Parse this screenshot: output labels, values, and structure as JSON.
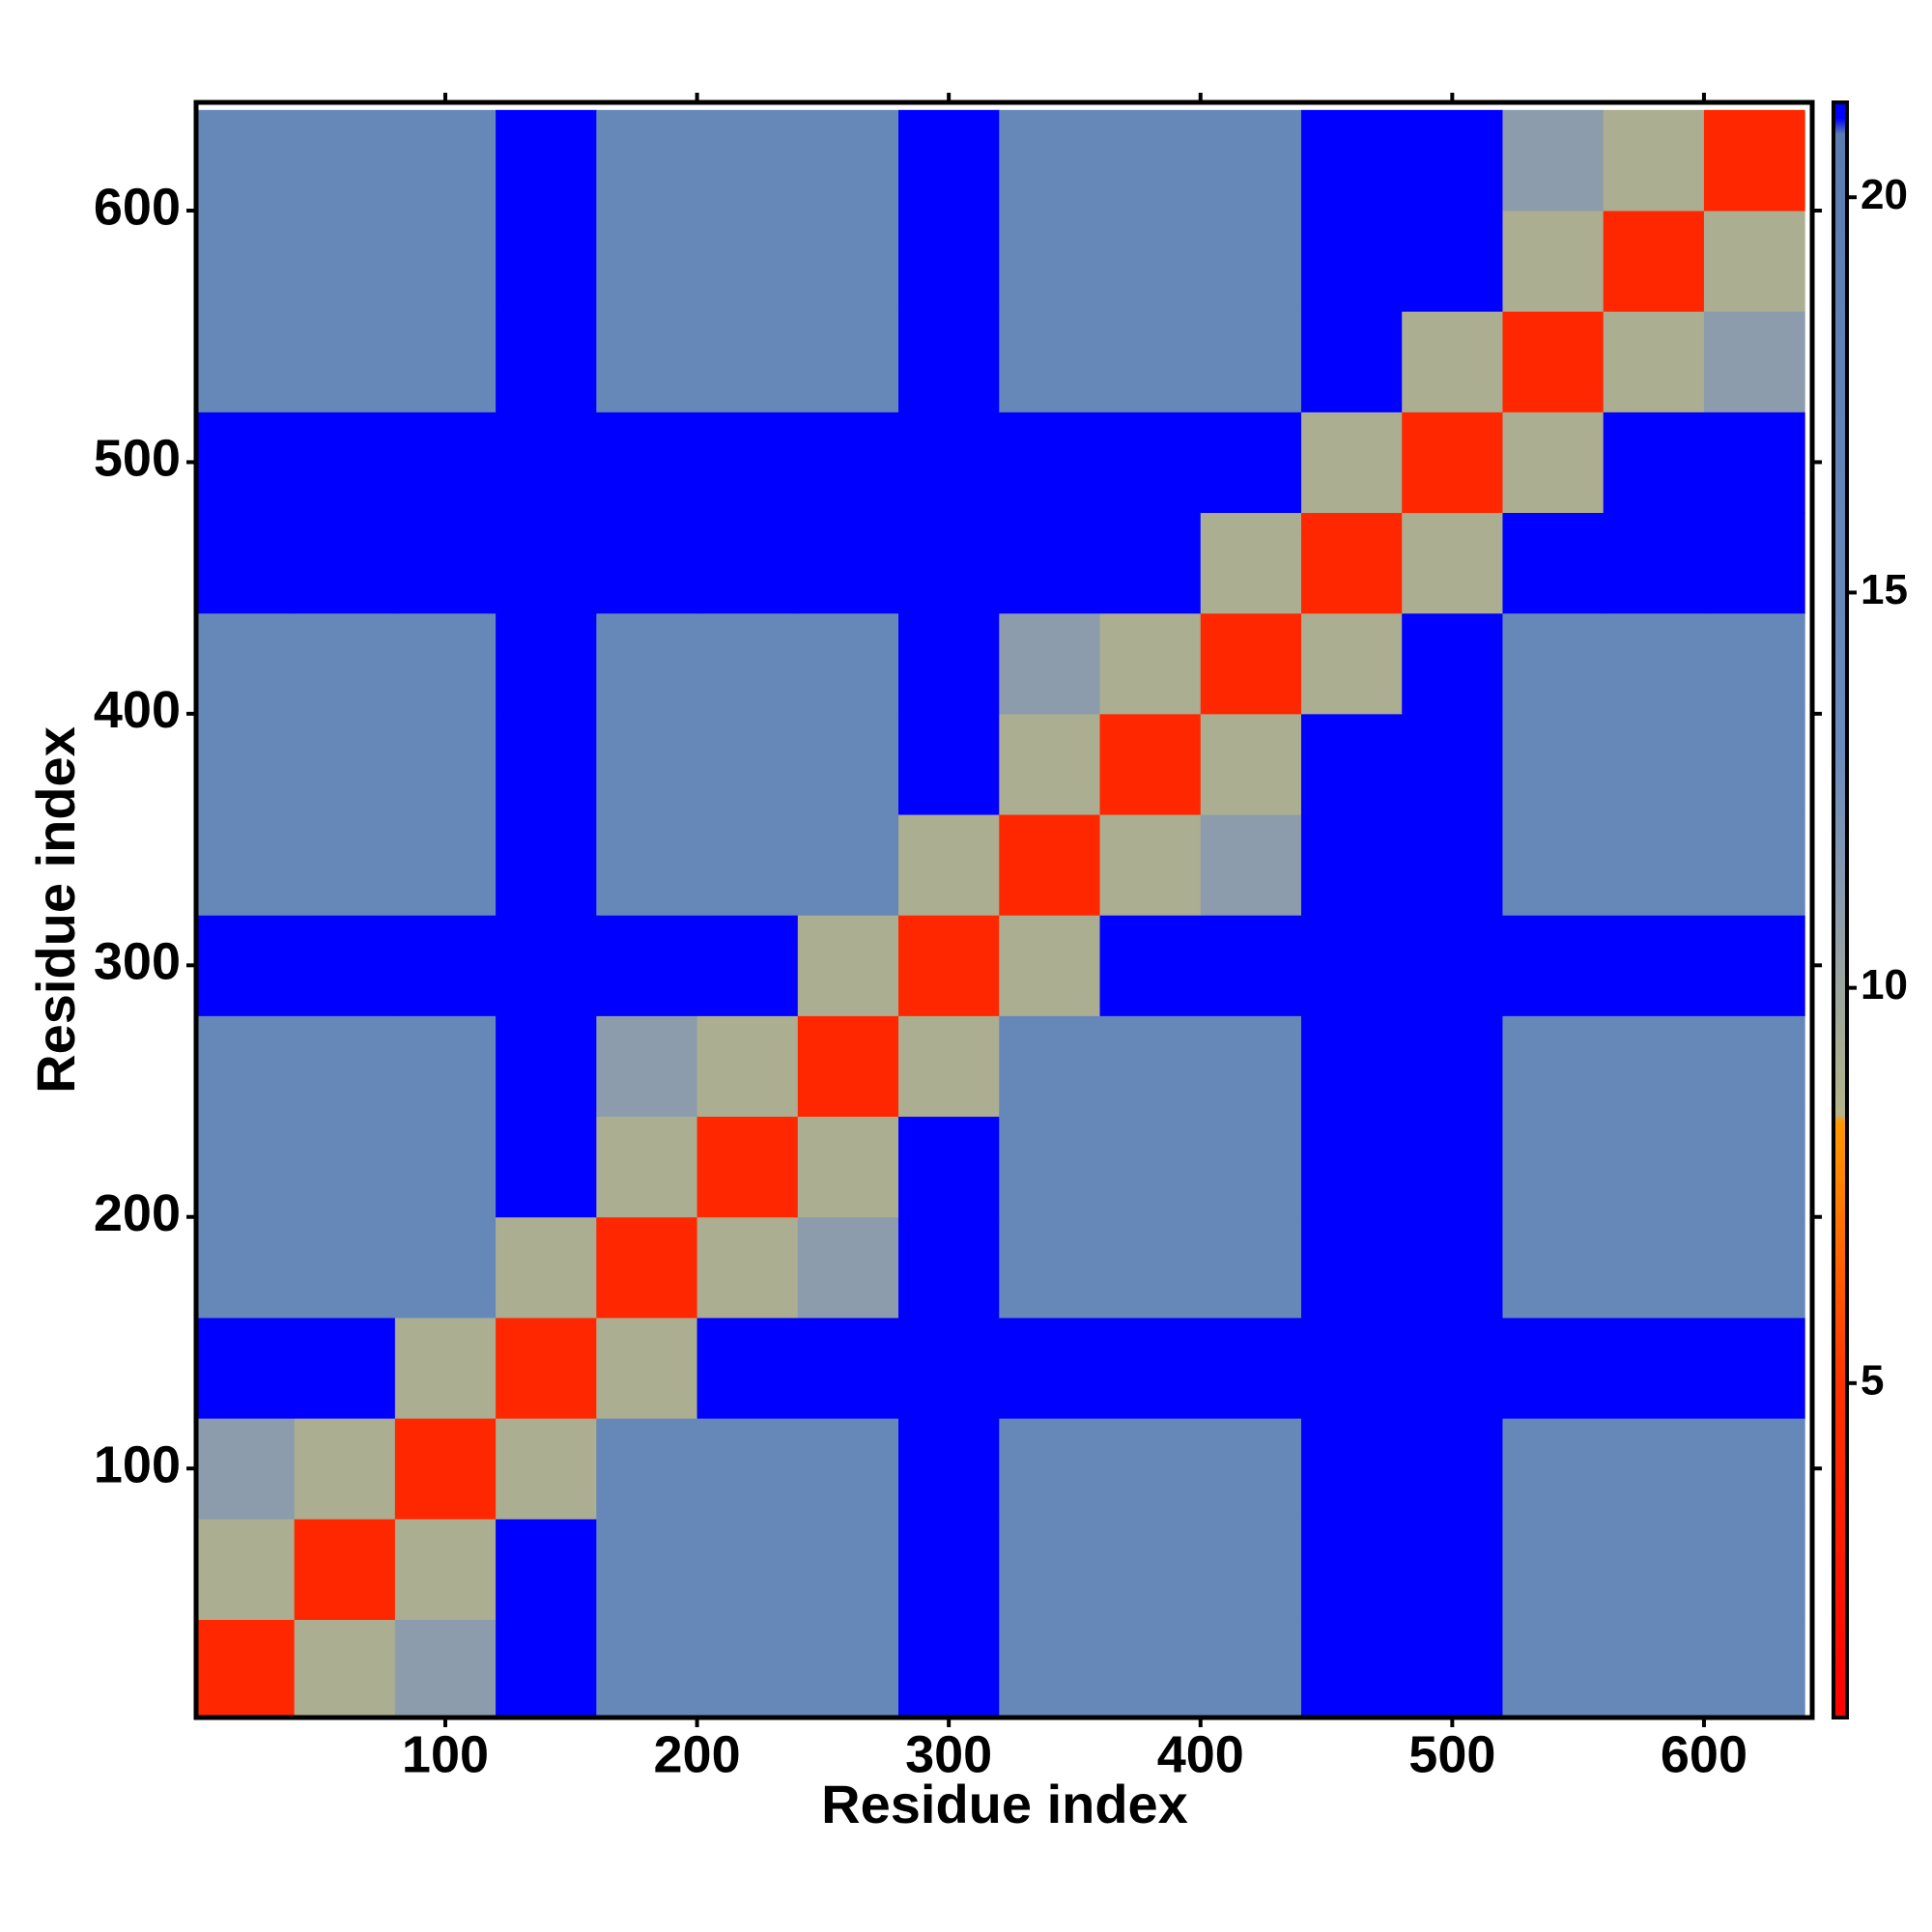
{
  "chart_data": {
    "type": "heatmap",
    "xlabel": "Residue index",
    "ylabel": "Residue index",
    "xbins": [
      0,
      40,
      80,
      120,
      160,
      200,
      240,
      280,
      320,
      360,
      400,
      440,
      480,
      520,
      560,
      600,
      640
    ],
    "ybins": [
      0,
      40,
      80,
      120,
      160,
      200,
      240,
      280,
      320,
      360,
      400,
      440,
      480,
      520,
      560,
      600,
      640
    ],
    "z": [
      [
        4,
        9,
        11,
        21,
        15,
        15,
        15,
        21,
        15,
        15,
        15,
        21,
        21,
        15,
        15,
        15
      ],
      [
        9,
        4,
        9,
        21,
        15,
        15,
        15,
        21,
        15,
        15,
        15,
        21,
        21,
        15,
        15,
        15
      ],
      [
        11,
        9,
        4,
        9,
        15,
        15,
        15,
        21,
        15,
        15,
        15,
        21,
        21,
        15,
        15,
        15
      ],
      [
        21,
        21,
        9,
        4,
        9,
        21,
        21,
        21,
        21,
        21,
        21,
        21,
        21,
        21,
        21,
        21
      ],
      [
        15,
        15,
        15,
        9,
        4,
        9,
        11,
        21,
        15,
        15,
        15,
        21,
        21,
        15,
        15,
        15
      ],
      [
        15,
        15,
        15,
        21,
        9,
        4,
        9,
        21,
        15,
        15,
        15,
        21,
        21,
        15,
        15,
        15
      ],
      [
        15,
        15,
        15,
        21,
        11,
        9,
        4,
        9,
        15,
        15,
        15,
        21,
        21,
        15,
        15,
        15
      ],
      [
        21,
        21,
        21,
        21,
        21,
        21,
        9,
        4,
        9,
        21,
        21,
        21,
        21,
        21,
        21,
        21
      ],
      [
        15,
        15,
        15,
        21,
        15,
        15,
        15,
        9,
        4,
        9,
        11,
        21,
        21,
        15,
        15,
        15
      ],
      [
        15,
        15,
        15,
        21,
        15,
        15,
        15,
        21,
        9,
        4,
        9,
        21,
        21,
        15,
        15,
        15
      ],
      [
        15,
        15,
        15,
        21,
        15,
        15,
        15,
        21,
        11,
        9,
        4,
        9,
        21,
        15,
        15,
        15
      ],
      [
        21,
        21,
        21,
        21,
        21,
        21,
        21,
        21,
        21,
        21,
        9,
        4,
        9,
        21,
        21,
        21
      ],
      [
        21,
        21,
        21,
        21,
        21,
        21,
        21,
        21,
        21,
        21,
        21,
        9,
        4,
        9,
        21,
        21
      ],
      [
        15,
        15,
        15,
        21,
        15,
        15,
        15,
        21,
        15,
        15,
        15,
        21,
        9,
        4,
        9,
        11
      ],
      [
        15,
        15,
        15,
        21,
        15,
        15,
        15,
        21,
        15,
        15,
        15,
        21,
        21,
        9,
        4,
        9
      ],
      [
        15,
        15,
        15,
        21,
        15,
        15,
        15,
        21,
        15,
        15,
        15,
        21,
        21,
        11,
        9,
        4
      ]
    ],
    "xlim": [
      1,
      643
    ],
    "ylim": [
      1,
      643
    ],
    "xticks": [
      100,
      200,
      300,
      400,
      500,
      600
    ],
    "yticks": [
      100,
      200,
      300,
      400,
      500,
      600
    ],
    "colorbar": {
      "lim": [
        0.77,
        21.2
      ],
      "ticks": [
        5,
        10,
        15,
        20
      ],
      "stops": [
        {
          "value": 0.77,
          "color": "#ff0000"
        },
        {
          "value": 5,
          "color": "#ff3300"
        },
        {
          "value": 8.3,
          "color": "#ff9900"
        },
        {
          "value": 8.4,
          "color": "#b4b488"
        },
        {
          "value": 11,
          "color": "#8c9cac"
        },
        {
          "value": 13,
          "color": "#6a8cbc"
        },
        {
          "value": 20.8,
          "color": "#5a7cb0"
        },
        {
          "value": 21,
          "color": "#0000ff"
        }
      ]
    }
  }
}
